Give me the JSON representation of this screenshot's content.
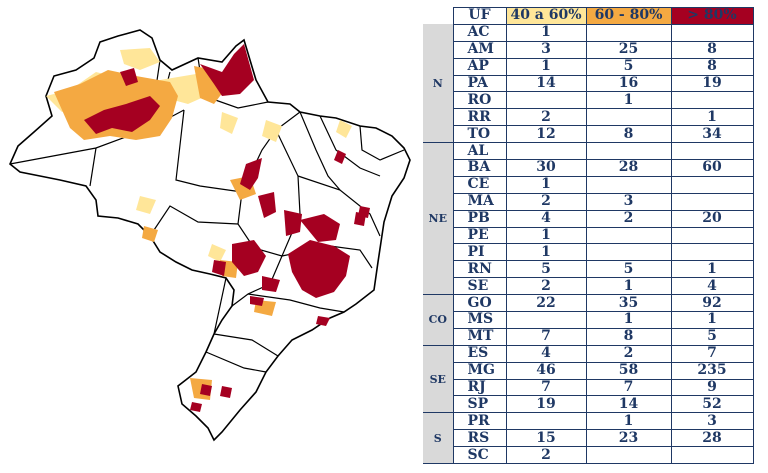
{
  "legend": {
    "uf_label": "UF",
    "bin_low": "40 a 60%",
    "bin_mid": "60 - 80%",
    "bin_high": "> 80%",
    "colors": {
      "low": "#ffe699",
      "mid": "#f4a942",
      "high": "#a50021"
    }
  },
  "regions": [
    {
      "name": "N",
      "rows": [
        {
          "uf": "AC",
          "v40": "1",
          "v60": "",
          "v80": ""
        },
        {
          "uf": "AM",
          "v40": "3",
          "v60": "25",
          "v80": "8"
        },
        {
          "uf": "AP",
          "v40": "1",
          "v60": "5",
          "v80": "8"
        },
        {
          "uf": "PA",
          "v40": "14",
          "v60": "16",
          "v80": "19"
        },
        {
          "uf": "RO",
          "v40": "",
          "v60": "1",
          "v80": ""
        },
        {
          "uf": "RR",
          "v40": "2",
          "v60": "",
          "v80": "1"
        },
        {
          "uf": "TO",
          "v40": "12",
          "v60": "8",
          "v80": "34"
        }
      ]
    },
    {
      "name": "NE",
      "rows": [
        {
          "uf": "AL",
          "v40": "",
          "v60": "",
          "v80": ""
        },
        {
          "uf": "BA",
          "v40": "30",
          "v60": "28",
          "v80": "60"
        },
        {
          "uf": "CE",
          "v40": "1",
          "v60": "",
          "v80": ""
        },
        {
          "uf": "MA",
          "v40": "2",
          "v60": "3",
          "v80": ""
        },
        {
          "uf": "PB",
          "v40": "4",
          "v60": "2",
          "v80": "20"
        },
        {
          "uf": "PE",
          "v40": "1",
          "v60": "",
          "v80": ""
        },
        {
          "uf": "PI",
          "v40": "1",
          "v60": "",
          "v80": ""
        },
        {
          "uf": "RN",
          "v40": "5",
          "v60": "5",
          "v80": "1"
        },
        {
          "uf": "SE",
          "v40": "2",
          "v60": "1",
          "v80": "4"
        }
      ]
    },
    {
      "name": "CO",
      "rows": [
        {
          "uf": "GO",
          "v40": "22",
          "v60": "35",
          "v80": "92"
        },
        {
          "uf": "MS",
          "v40": "",
          "v60": "1",
          "v80": "1"
        },
        {
          "uf": "MT",
          "v40": "7",
          "v60": "8",
          "v80": "5"
        }
      ]
    },
    {
      "name": "SE",
      "rows": [
        {
          "uf": "ES",
          "v40": "4",
          "v60": "2",
          "v80": "7"
        },
        {
          "uf": "MG",
          "v40": "46",
          "v60": "58",
          "v80": "235"
        },
        {
          "uf": "RJ",
          "v40": "7",
          "v60": "7",
          "v80": "9"
        },
        {
          "uf": "SP",
          "v40": "19",
          "v60": "14",
          "v80": "52"
        }
      ]
    },
    {
      "name": "S",
      "rows": [
        {
          "uf": "PR",
          "v40": "",
          "v60": "1",
          "v80": "3"
        },
        {
          "uf": "RS",
          "v40": "15",
          "v60": "23",
          "v80": "28"
        },
        {
          "uf": "SC",
          "v40": "2",
          "v60": "",
          "v80": ""
        }
      ]
    }
  ]
}
